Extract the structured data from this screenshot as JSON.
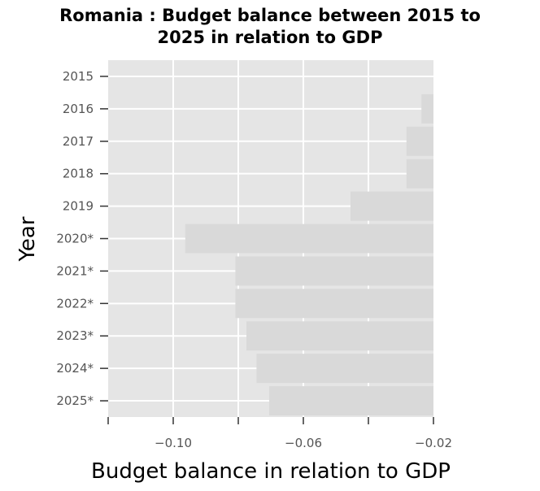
{
  "chart_data": {
    "type": "bar",
    "orientation": "horizontal",
    "title": "Romania : Budget balance between 2015 to\n2025 in relation to GDP",
    "xlabel": "Budget balance in relation to GDP",
    "ylabel": "Year",
    "categories": [
      "2015",
      "2016",
      "2017",
      "2018",
      "2019",
      "2020*",
      "2021*",
      "2022*",
      "2023*",
      "2024*",
      "2025*"
    ],
    "values": [
      -0.0137,
      -0.0237,
      -0.0283,
      -0.0283,
      -0.0455,
      -0.0963,
      -0.0809,
      -0.0809,
      -0.0775,
      -0.0744,
      -0.0705
    ],
    "xlim": [
      -0.12,
      -0.02
    ],
    "xticks": [
      -0.1,
      -0.06,
      -0.02
    ],
    "xtick_labels": [
      "−0.10",
      "−0.06",
      "−0.02"
    ],
    "grid": true,
    "colors": {
      "panel": "#e5e5e5",
      "bar": "#d9d9d9",
      "grid": "#ffffff"
    }
  }
}
